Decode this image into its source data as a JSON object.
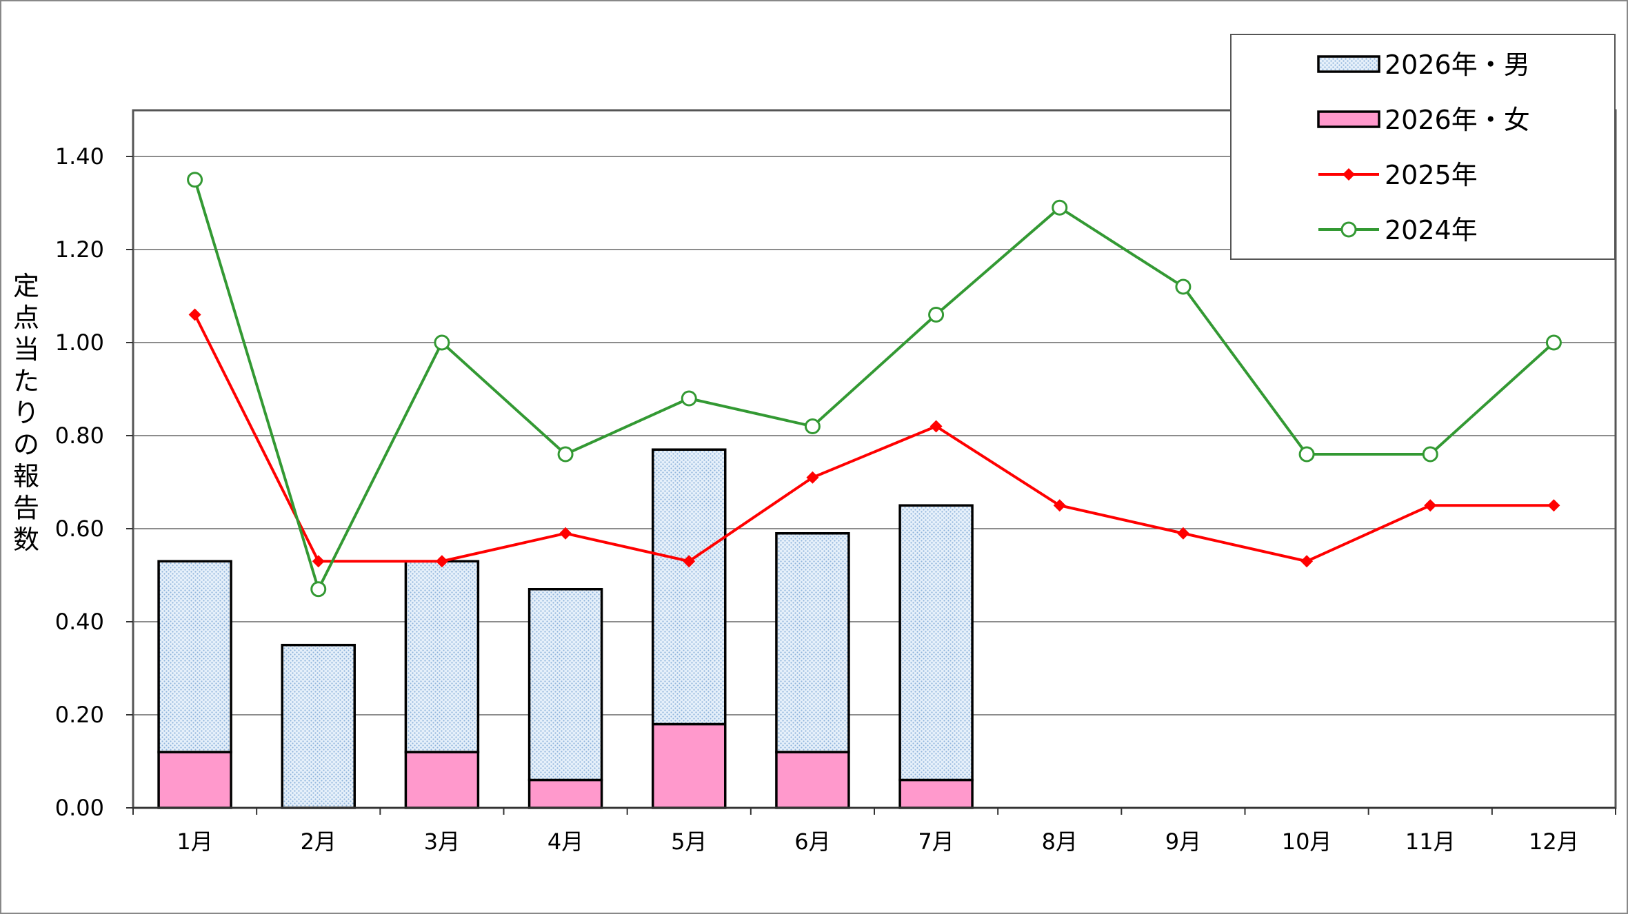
{
  "chart_data": {
    "type": "bar",
    "categories": [
      "1月",
      "2月",
      "3月",
      "4月",
      "5月",
      "6月",
      "7月",
      "8月",
      "9月",
      "10月",
      "11月",
      "12月"
    ],
    "ylabel": "定点当たりの報告数",
    "xlabel": "",
    "ylim": [
      0,
      1.4
    ],
    "yticks": [
      "0.00",
      "0.20",
      "0.40",
      "0.60",
      "0.80",
      "1.00",
      "1.20",
      "1.40"
    ],
    "grid": true,
    "legend_position": "top-right",
    "series": [
      {
        "name": "2026年・男",
        "kind": "stacked-bar",
        "color": "#dce9f5",
        "values": [
          0.41,
          0.35,
          0.41,
          0.41,
          0.59,
          0.47,
          0.59,
          null,
          null,
          null,
          null,
          null
        ]
      },
      {
        "name": "2026年・女",
        "kind": "stacked-bar",
        "color": "#ff99cc",
        "values": [
          0.12,
          0.0,
          0.12,
          0.06,
          0.18,
          0.12,
          0.06,
          null,
          null,
          null,
          null,
          null
        ]
      },
      {
        "name": "2025年",
        "kind": "line",
        "color": "#ff0000",
        "marker": "diamond",
        "values": [
          1.06,
          0.53,
          0.53,
          0.59,
          0.53,
          0.71,
          0.82,
          0.65,
          0.59,
          0.53,
          0.65,
          0.65
        ]
      },
      {
        "name": "2024年",
        "kind": "line",
        "color": "#339933",
        "marker": "circle",
        "values": [
          1.35,
          0.47,
          1.0,
          0.76,
          0.88,
          0.82,
          1.06,
          1.29,
          1.12,
          0.76,
          0.76,
          1.0
        ]
      }
    ]
  }
}
